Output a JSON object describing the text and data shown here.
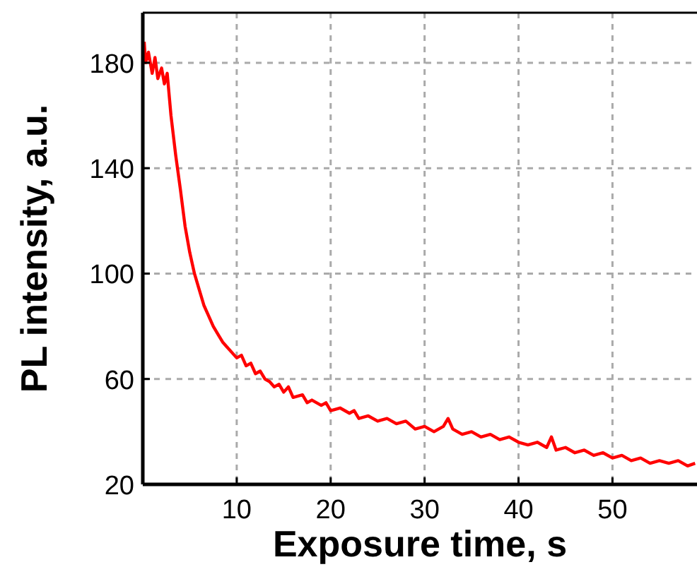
{
  "chart_data": {
    "type": "line",
    "xlabel": "Exposure time, s",
    "ylabel": "PL intensity, a.u.",
    "xlim": [
      0,
      59
    ],
    "ylim": [
      20,
      199
    ],
    "xticks": [
      10,
      20,
      30,
      40,
      50
    ],
    "yticks": [
      20,
      60,
      100,
      140,
      180
    ],
    "grid": true,
    "line_style": "solid",
    "marker": "none",
    "x": [
      0.15,
      0.3,
      0.6,
      1,
      1.3,
      1.6,
      2,
      2.3,
      2.6,
      3,
      3.5,
      4,
      4.5,
      5,
      5.5,
      6,
      6.5,
      7,
      7.5,
      8,
      8.5,
      9,
      9.5,
      10,
      10.5,
      11,
      11.5,
      12,
      12.5,
      13,
      13.5,
      14,
      14.5,
      15,
      15.5,
      16,
      17,
      17.5,
      18,
      19,
      19.5,
      20,
      21,
      22,
      22.5,
      23,
      24,
      25,
      26,
      27,
      28,
      29,
      30,
      31,
      32,
      32.5,
      33,
      34,
      35,
      36,
      37,
      38,
      39,
      40,
      41,
      42,
      43,
      43.5,
      44,
      45,
      46,
      47,
      48,
      49,
      50,
      51,
      52,
      53,
      54,
      55,
      56,
      57,
      58,
      58.8
    ],
    "series": [
      {
        "color": "#ff0000",
        "values": [
          188,
          180,
          184,
          176,
          182,
          174,
          178,
          172,
          176,
          160,
          145,
          132,
          118,
          108,
          100,
          94,
          88,
          84,
          80,
          77,
          74,
          72,
          70,
          68,
          69,
          65,
          66,
          62,
          63,
          60,
          59,
          57,
          58,
          55,
          57,
          53,
          54,
          51,
          52,
          50,
          51,
          48,
          49,
          47,
          48,
          45,
          46,
          44,
          45,
          43,
          44,
          41,
          42,
          40,
          42,
          45,
          41,
          39,
          40,
          38,
          39,
          37,
          38,
          36,
          35,
          36,
          34,
          38,
          33,
          34,
          32,
          33,
          31,
          32,
          30,
          31,
          29,
          30,
          28,
          29,
          28,
          29,
          27,
          28
        ]
      }
    ]
  }
}
